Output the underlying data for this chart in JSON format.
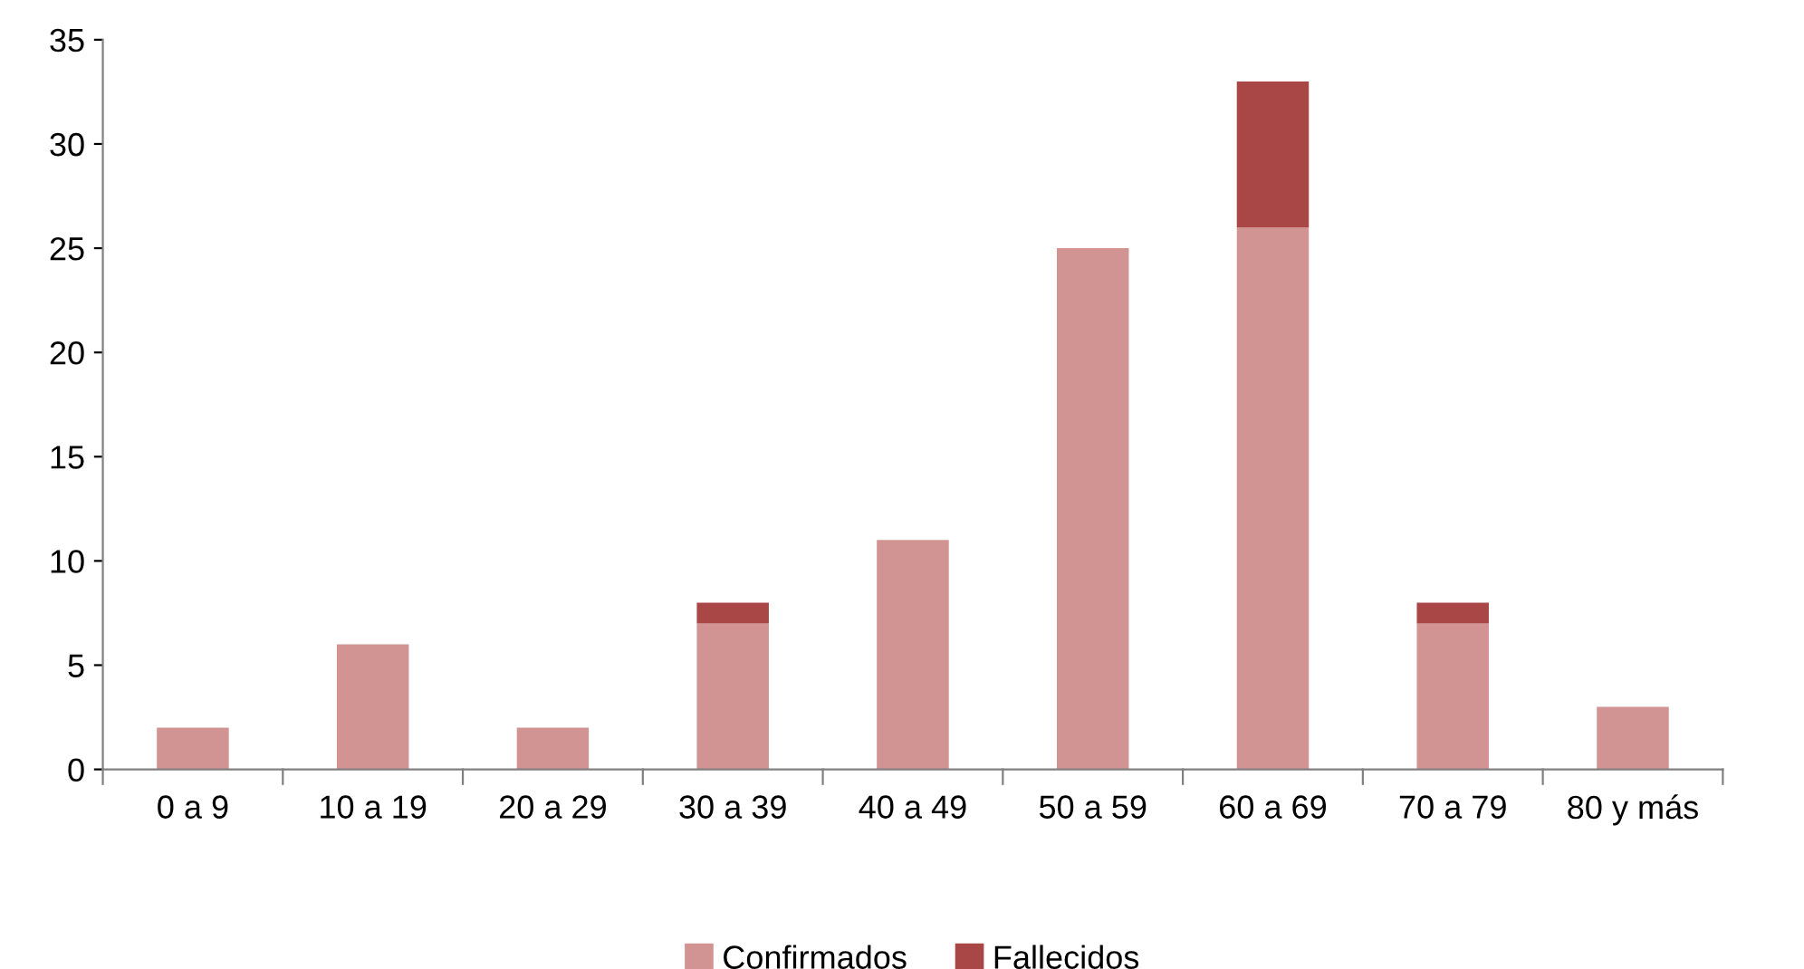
{
  "chart_data": {
    "type": "bar",
    "stacked": true,
    "categories": [
      "0 a 9",
      "10 a 19",
      "20 a 29",
      "30 a 39",
      "40 a 49",
      "50 a 59",
      "60 a 69",
      "70 a 79",
      "80 y más"
    ],
    "series": [
      {
        "name": "Confirmados",
        "color": "#d29393",
        "values": [
          2,
          6,
          2,
          7,
          11,
          25,
          26,
          7,
          3
        ]
      },
      {
        "name": "Fallecidos",
        "color": "#a94646",
        "values": [
          0,
          0,
          0,
          1,
          0,
          0,
          7,
          1,
          0
        ]
      }
    ],
    "ylim": [
      0,
      35
    ],
    "yticks": [
      0,
      5,
      10,
      15,
      20,
      25,
      30,
      35
    ],
    "grid": false,
    "legend": "bottom"
  }
}
